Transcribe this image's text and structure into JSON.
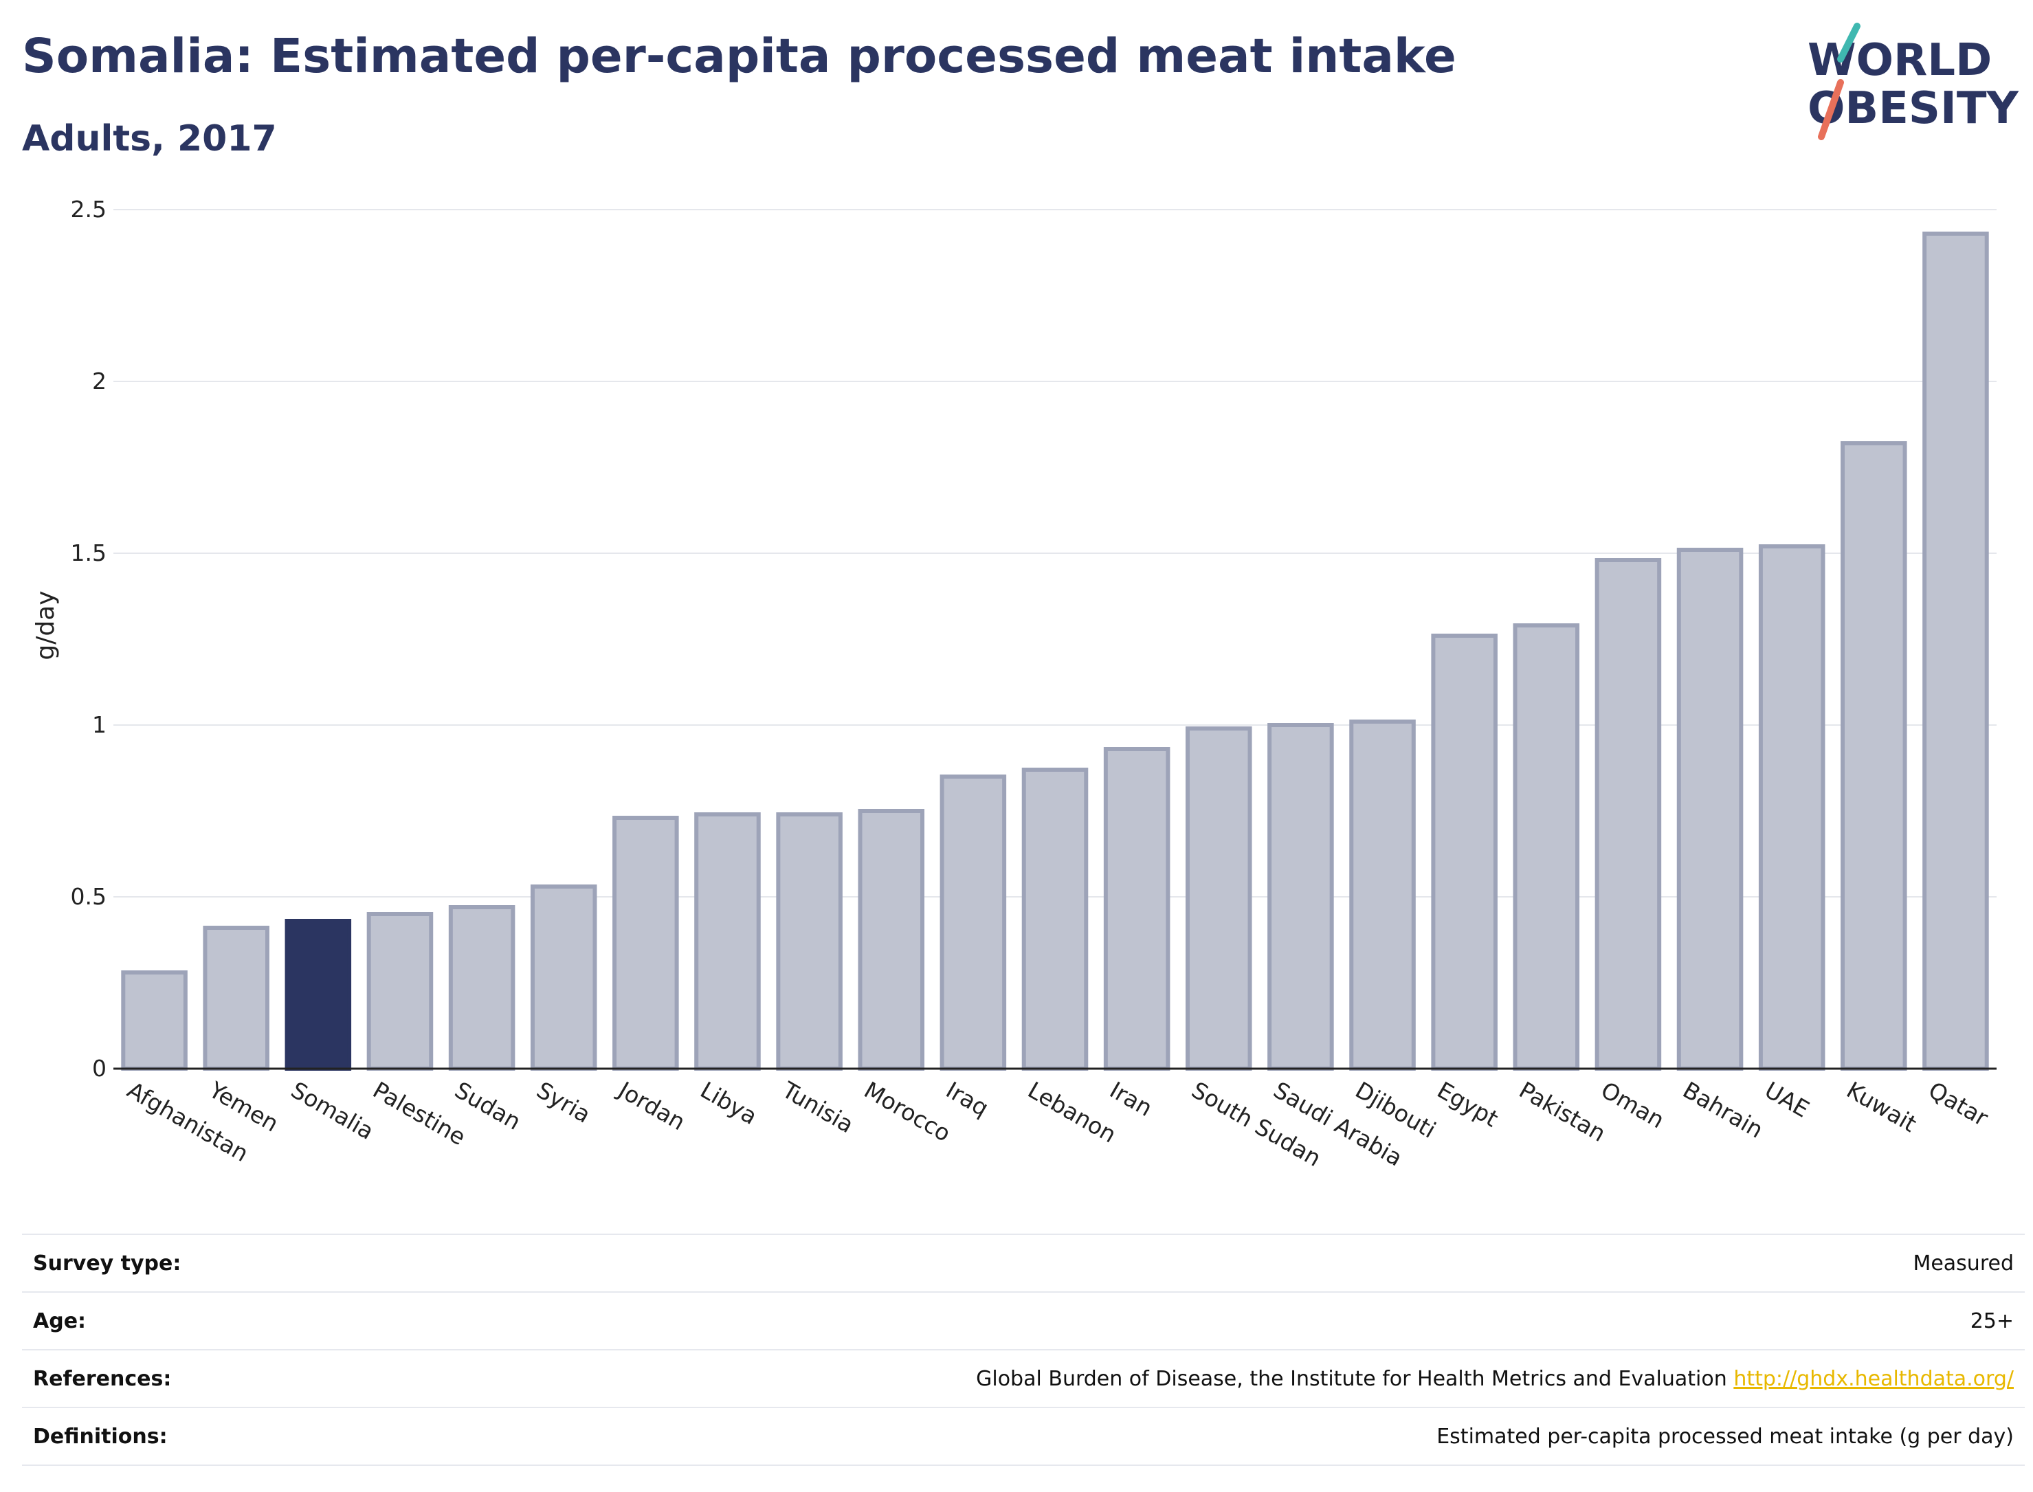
{
  "header": {
    "title": "Somalia: Estimated per-capita processed meat intake",
    "subtitle": "Adults, 2017"
  },
  "logo": {
    "line1": "WORLD",
    "line2": "OBESITY"
  },
  "chart_data": {
    "type": "bar",
    "title": "Somalia: Estimated per-capita processed meat intake",
    "subtitle": "Adults, 2017",
    "ylabel": "g/day",
    "xlabel": "",
    "ylim": [
      0,
      2.5
    ],
    "yticks": [
      0,
      0.5,
      1,
      1.5,
      2,
      2.5
    ],
    "grid": true,
    "highlight": "Somalia",
    "colors": {
      "bar": "#bfc3d0",
      "bar_border": "#9da3b8",
      "highlight": "#2b3561"
    },
    "categories": [
      "Afghanistan",
      "Yemen",
      "Somalia",
      "Palestine",
      "Sudan",
      "Syria",
      "Jordan",
      "Libya",
      "Tunisia",
      "Morocco",
      "Iraq",
      "Lebanon",
      "Iran",
      "South Sudan",
      "Saudi Arabia",
      "Djibouti",
      "Egypt",
      "Pakistan",
      "Oman",
      "Bahrain",
      "UAE",
      "Kuwait",
      "Qatar"
    ],
    "values": [
      0.28,
      0.41,
      0.43,
      0.45,
      0.47,
      0.53,
      0.73,
      0.74,
      0.74,
      0.75,
      0.85,
      0.87,
      0.93,
      0.99,
      1.0,
      1.01,
      1.26,
      1.29,
      1.48,
      1.51,
      1.52,
      1.82,
      2.43
    ]
  },
  "footer": {
    "survey_type": {
      "label": "Survey type:",
      "value": "Measured"
    },
    "age": {
      "label": "Age:",
      "value": "25+"
    },
    "references": {
      "label": "References:",
      "value": "Global Burden of Disease, the Institute for Health Metrics and Evaluation",
      "link": "http://ghdx.healthdata.org/"
    },
    "definitions": {
      "label": "Definitions:",
      "value": "Estimated per-capita processed meat intake (g per day)"
    }
  }
}
